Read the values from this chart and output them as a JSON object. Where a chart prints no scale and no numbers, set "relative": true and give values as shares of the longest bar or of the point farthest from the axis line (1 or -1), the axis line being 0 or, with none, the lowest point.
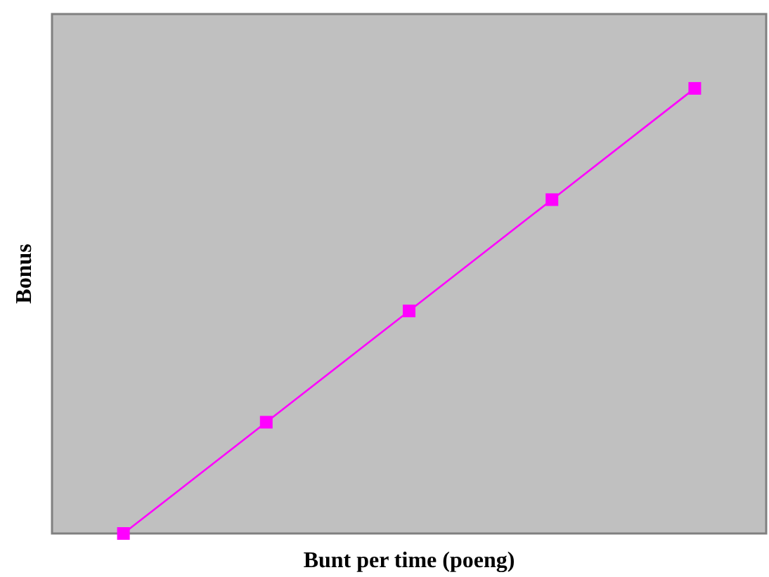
{
  "chart_data": {
    "type": "line",
    "xlabel": "Bunt per time (poeng)",
    "ylabel": "Bonus",
    "relative": true,
    "categories": [
      null,
      null,
      null,
      null,
      null
    ],
    "series": [
      {
        "color": "#ff00ff",
        "values": [
          0,
          0.25,
          0.5,
          0.75,
          1
        ]
      }
    ],
    "marker": "square",
    "line_style": "solid",
    "grid": false
  }
}
